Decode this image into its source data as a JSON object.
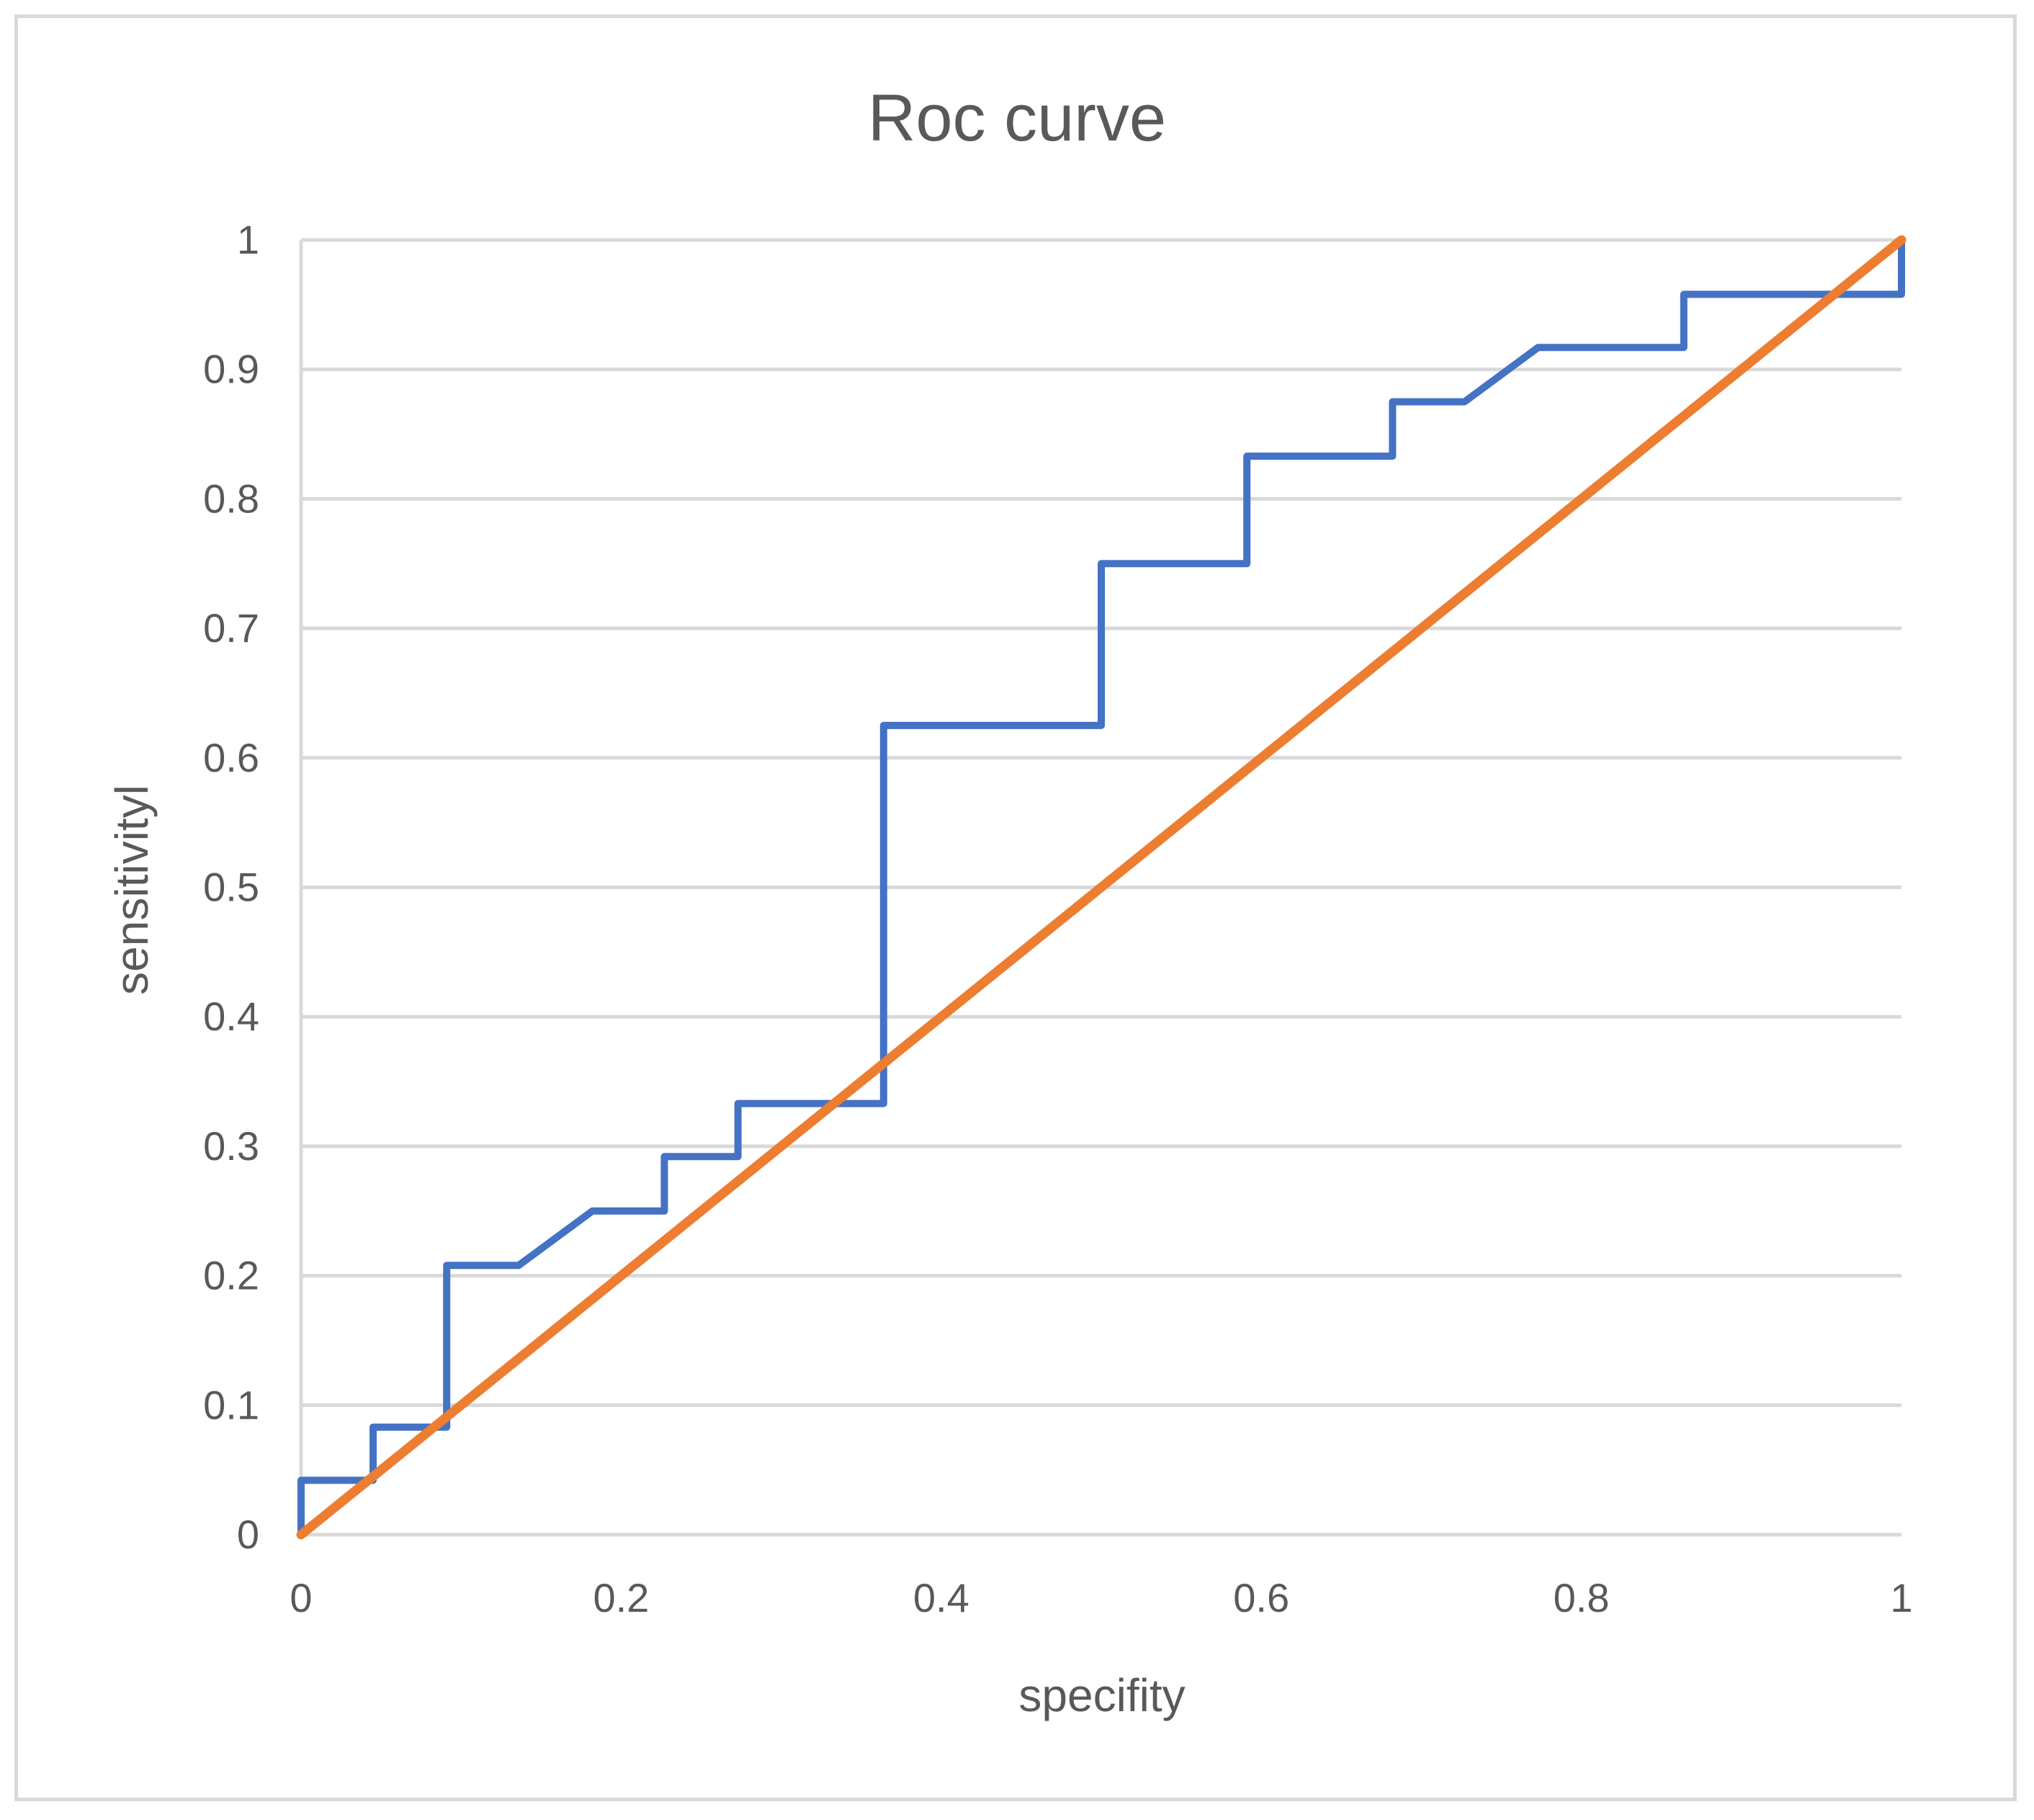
{
  "chart_data": {
    "type": "line",
    "title": "Roc curve",
    "xlabel": "specifity",
    "ylabel": "sensitivityl",
    "xlim": [
      0,
      1
    ],
    "ylim": [
      0,
      1
    ],
    "x_ticks": [
      "0",
      "0.2",
      "0.4",
      "0.6",
      "0.8",
      "1"
    ],
    "y_ticks": [
      "0",
      "0.1",
      "0.2",
      "0.3",
      "0.4",
      "0.5",
      "0.6",
      "0.7",
      "0.8",
      "0.9",
      "1"
    ],
    "grid": "horizontal",
    "legend": "none",
    "series": [
      {
        "color": "#4472c4",
        "points": [
          [
            0,
            0
          ],
          [
            0,
            0.042
          ],
          [
            0.045,
            0.042
          ],
          [
            0.045,
            0.083
          ],
          [
            0.091,
            0.083
          ],
          [
            0.091,
            0.208
          ],
          [
            0.136,
            0.208
          ],
          [
            0.182,
            0.25
          ],
          [
            0.227,
            0.25
          ],
          [
            0.227,
            0.292
          ],
          [
            0.273,
            0.292
          ],
          [
            0.273,
            0.333
          ],
          [
            0.364,
            0.333
          ],
          [
            0.364,
            0.625
          ],
          [
            0.5,
            0.625
          ],
          [
            0.5,
            0.75
          ],
          [
            0.591,
            0.75
          ],
          [
            0.591,
            0.833
          ],
          [
            0.682,
            0.833
          ],
          [
            0.682,
            0.875
          ],
          [
            0.727,
            0.875
          ],
          [
            0.773,
            0.917
          ],
          [
            0.864,
            0.917
          ],
          [
            0.864,
            0.958
          ],
          [
            1,
            0.958
          ],
          [
            1,
            1
          ]
        ]
      },
      {
        "color": "#ed7d31",
        "points": [
          [
            0,
            0
          ],
          [
            1,
            1
          ]
        ]
      }
    ]
  }
}
